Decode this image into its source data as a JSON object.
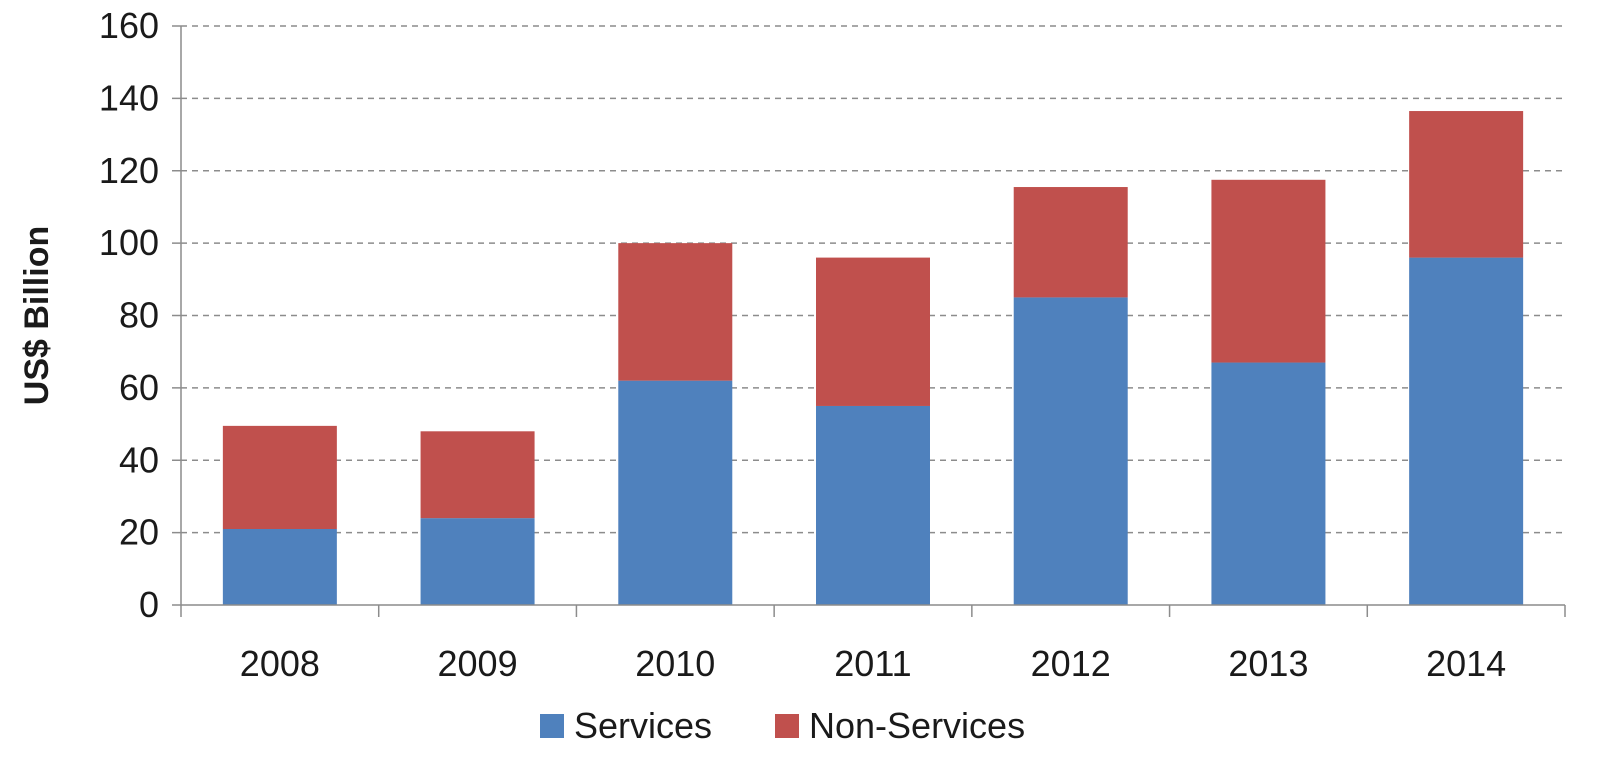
{
  "chart_data": {
    "type": "bar",
    "stacked": true,
    "categories": [
      "2008",
      "2009",
      "2010",
      "2011",
      "2012",
      "2013",
      "2014"
    ],
    "series": [
      {
        "name": "Services",
        "color": "#4f81bd",
        "values": [
          21,
          24,
          62,
          55,
          85,
          67,
          96
        ]
      },
      {
        "name": "Non-Services",
        "color": "#c0504d",
        "values": [
          28.5,
          24,
          38,
          41,
          30.5,
          50.5,
          40.5
        ]
      }
    ],
    "title": "",
    "xlabel": "",
    "ylabel": "US$ Billion",
    "ylim": [
      0,
      160
    ],
    "yticks": [
      "0",
      "20",
      "40",
      "60",
      "80",
      "100",
      "120",
      "140",
      "160"
    ],
    "grid": true,
    "legend_position": "bottom"
  }
}
